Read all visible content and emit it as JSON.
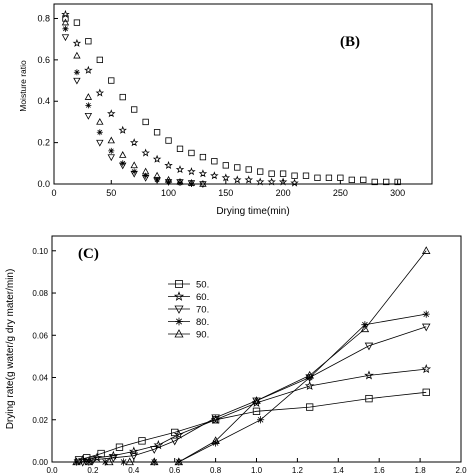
{
  "symbols": {
    "50": "square",
    "60": "star",
    "70": "triangle-down",
    "80": "asterisk",
    "90": "triangle-up"
  },
  "chart_data": [
    {
      "type": "scatter",
      "panel_label": "(B)",
      "xlabel": "Drying time(min)",
      "ylabel": "Moisture ratio",
      "xlim": [
        0,
        330
      ],
      "ylim": [
        0,
        0.87
      ],
      "xticks": [
        "0",
        "50",
        "100",
        "150",
        "200",
        "250",
        "300"
      ],
      "yticks": [
        "0.0",
        "0.2",
        "0.4",
        "0.6",
        "0.8"
      ],
      "legend": "none",
      "series": [
        {
          "name": "50",
          "x": [
            10,
            20,
            30,
            40,
            50,
            60,
            70,
            80,
            90,
            100,
            110,
            120,
            130,
            140,
            150,
            160,
            170,
            180,
            190,
            200,
            210,
            220,
            230,
            240,
            250,
            260,
            270,
            280,
            290,
            300
          ],
          "y": [
            0.8,
            0.78,
            0.69,
            0.6,
            0.5,
            0.42,
            0.36,
            0.3,
            0.25,
            0.21,
            0.17,
            0.15,
            0.13,
            0.11,
            0.09,
            0.08,
            0.07,
            0.06,
            0.05,
            0.05,
            0.04,
            0.04,
            0.03,
            0.03,
            0.03,
            0.02,
            0.02,
            0.01,
            0.01,
            0.01
          ]
        },
        {
          "name": "60",
          "x": [
            10,
            20,
            30,
            40,
            50,
            60,
            70,
            80,
            90,
            100,
            110,
            120,
            130,
            140,
            150,
            160,
            170,
            180,
            190,
            200,
            210
          ],
          "y": [
            0.82,
            0.68,
            0.55,
            0.44,
            0.34,
            0.26,
            0.2,
            0.15,
            0.12,
            0.09,
            0.07,
            0.06,
            0.05,
            0.04,
            0.03,
            0.02,
            0.02,
            0.01,
            0.01,
            0.01,
            0.005
          ]
        },
        {
          "name": "70",
          "x": [
            10,
            20,
            30,
            40,
            50,
            60,
            70,
            80,
            90,
            100,
            110,
            120,
            130
          ],
          "y": [
            0.71,
            0.5,
            0.33,
            0.2,
            0.13,
            0.09,
            0.05,
            0.03,
            0.02,
            0.01,
            0.01,
            0.005,
            0.0
          ]
        },
        {
          "name": "80",
          "x": [
            10,
            20,
            30,
            40,
            50,
            60,
            70,
            80,
            90,
            100,
            110,
            120
          ],
          "y": [
            0.75,
            0.54,
            0.38,
            0.25,
            0.16,
            0.1,
            0.06,
            0.04,
            0.02,
            0.01,
            0.005,
            0.0
          ]
        },
        {
          "name": "90",
          "x": [
            10,
            20,
            30,
            40,
            50,
            60,
            70,
            80,
            90,
            100,
            110,
            120,
            130
          ],
          "y": [
            0.78,
            0.62,
            0.42,
            0.3,
            0.21,
            0.14,
            0.09,
            0.06,
            0.04,
            0.02,
            0.01,
            0.005,
            0.0
          ]
        }
      ]
    },
    {
      "type": "line",
      "panel_label": "(C)",
      "xlabel": "",
      "ylabel": "Drying rate(g water/g dry mater/min)",
      "xlim": [
        0,
        2.0
      ],
      "ylim": [
        0,
        0.107
      ],
      "xticks": [
        "0.0",
        "0.2",
        "0.4",
        "0.6",
        "0.8",
        "1.0",
        "1.2",
        "1.4",
        "1.6",
        "1.8",
        "2.0"
      ],
      "yticks": [
        "0.00",
        "0.02",
        "0.04",
        "0.06",
        "0.08",
        "0.10"
      ],
      "legend": "upper-left",
      "series": [
        {
          "name": "50.",
          "x": [
            0.13,
            0.17,
            0.24,
            0.33,
            0.44,
            0.6,
            0.8,
            1.0,
            1.26,
            1.55,
            1.83
          ],
          "y": [
            0.001,
            0.002,
            0.004,
            0.007,
            0.01,
            0.014,
            0.02,
            0.024,
            0.026,
            0.03,
            0.033
          ]
        },
        {
          "name": "60.",
          "x": [
            0.15,
            0.22,
            0.3,
            0.4,
            0.52,
            0.62,
            0.8,
            1.0,
            1.26,
            1.55,
            1.83
          ],
          "y": [
            0.001,
            0.002,
            0.003,
            0.005,
            0.008,
            0.013,
            0.02,
            0.028,
            0.036,
            0.041,
            0.044
          ]
        },
        {
          "name": "70.",
          "x": [
            0.15,
            0.2,
            0.3,
            0.4,
            0.5,
            0.6,
            0.8,
            1.0,
            1.26,
            1.55,
            1.83
          ],
          "y": [
            0.0,
            0.001,
            0.002,
            0.003,
            0.006,
            0.01,
            0.021,
            0.029,
            0.04,
            0.055,
            0.064
          ]
        },
        {
          "name": "80.",
          "x": [
            0.12,
            0.18,
            0.26,
            0.35,
            0.5,
            0.62,
            0.8,
            1.02,
            1.26,
            1.53,
            1.83
          ],
          "y": [
            0.0,
            0.0,
            0.0,
            0.0,
            0.0,
            0.0,
            0.009,
            0.02,
            0.04,
            0.065,
            0.07
          ]
        },
        {
          "name": "90.",
          "x": [
            0.12,
            0.18,
            0.28,
            0.38,
            0.5,
            0.62,
            0.8,
            1.0,
            1.26,
            1.53,
            1.83
          ],
          "y": [
            0.0,
            0.0,
            0.0,
            0.0,
            0.0,
            0.0,
            0.01,
            0.029,
            0.041,
            0.063,
            0.1
          ]
        }
      ]
    }
  ]
}
